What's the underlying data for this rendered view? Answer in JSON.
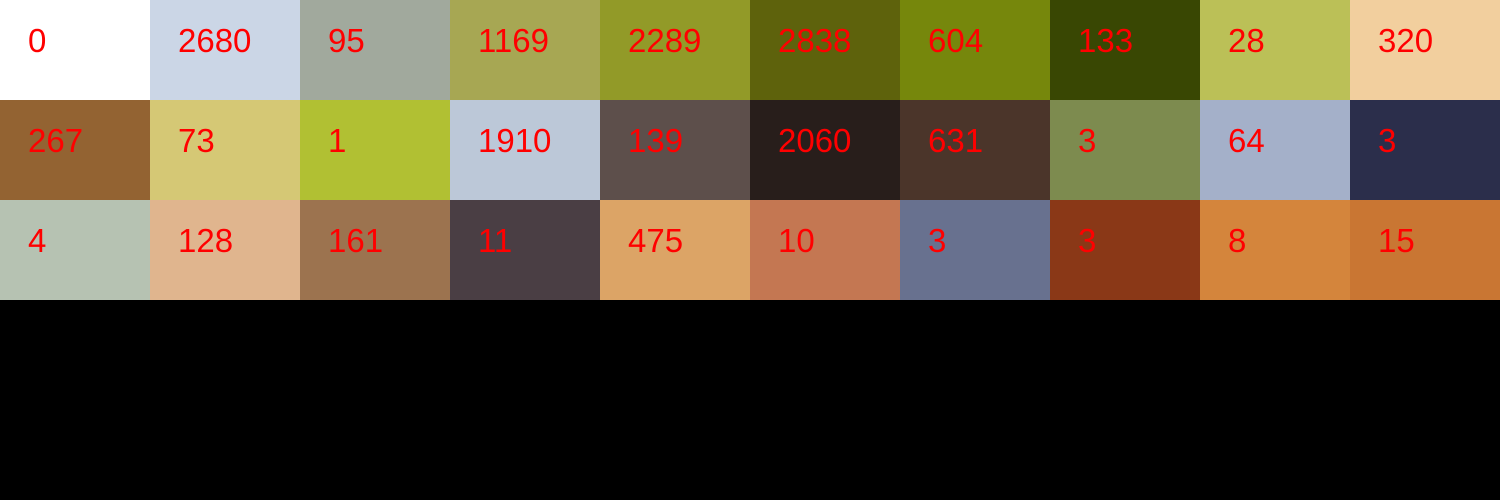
{
  "label_color": "#ff0000",
  "background": "#000000",
  "swatches": [
    {
      "color": "#ffffff",
      "count": "0"
    },
    {
      "color": "#cbd6e6",
      "count": "2680"
    },
    {
      "color": "#a1a99d",
      "count": "95"
    },
    {
      "color": "#a7a753",
      "count": "1169"
    },
    {
      "color": "#929a28",
      "count": "2289"
    },
    {
      "color": "#5e620c",
      "count": "2838"
    },
    {
      "color": "#76870c",
      "count": "604"
    },
    {
      "color": "#394703",
      "count": "133"
    },
    {
      "color": "#bbc057",
      "count": "28"
    },
    {
      "color": "#f2cf9e",
      "count": "320"
    },
    {
      "color": "#936332",
      "count": "267"
    },
    {
      "color": "#d5c875",
      "count": "73"
    },
    {
      "color": "#b1c033",
      "count": "1"
    },
    {
      "color": "#bcc8d8",
      "count": "1910"
    },
    {
      "color": "#5d4f4b",
      "count": "139"
    },
    {
      "color": "#281e1b",
      "count": "2060"
    },
    {
      "color": "#4b352a",
      "count": "631"
    },
    {
      "color": "#7d8b4f",
      "count": "3"
    },
    {
      "color": "#a4b0c9",
      "count": "64"
    },
    {
      "color": "#2b2e4b",
      "count": "3"
    },
    {
      "color": "#b6c2b2",
      "count": "4"
    },
    {
      "color": "#e0b58e",
      "count": "128"
    },
    {
      "color": "#9c734f",
      "count": "161"
    },
    {
      "color": "#4a3e44",
      "count": "11"
    },
    {
      "color": "#dca466",
      "count": "475"
    },
    {
      "color": "#c47752",
      "count": "10"
    },
    {
      "color": "#68718f",
      "count": "3"
    },
    {
      "color": "#8a3817",
      "count": "3"
    },
    {
      "color": "#d4853c",
      "count": "8"
    },
    {
      "color": "#c97633",
      "count": "15"
    }
  ]
}
